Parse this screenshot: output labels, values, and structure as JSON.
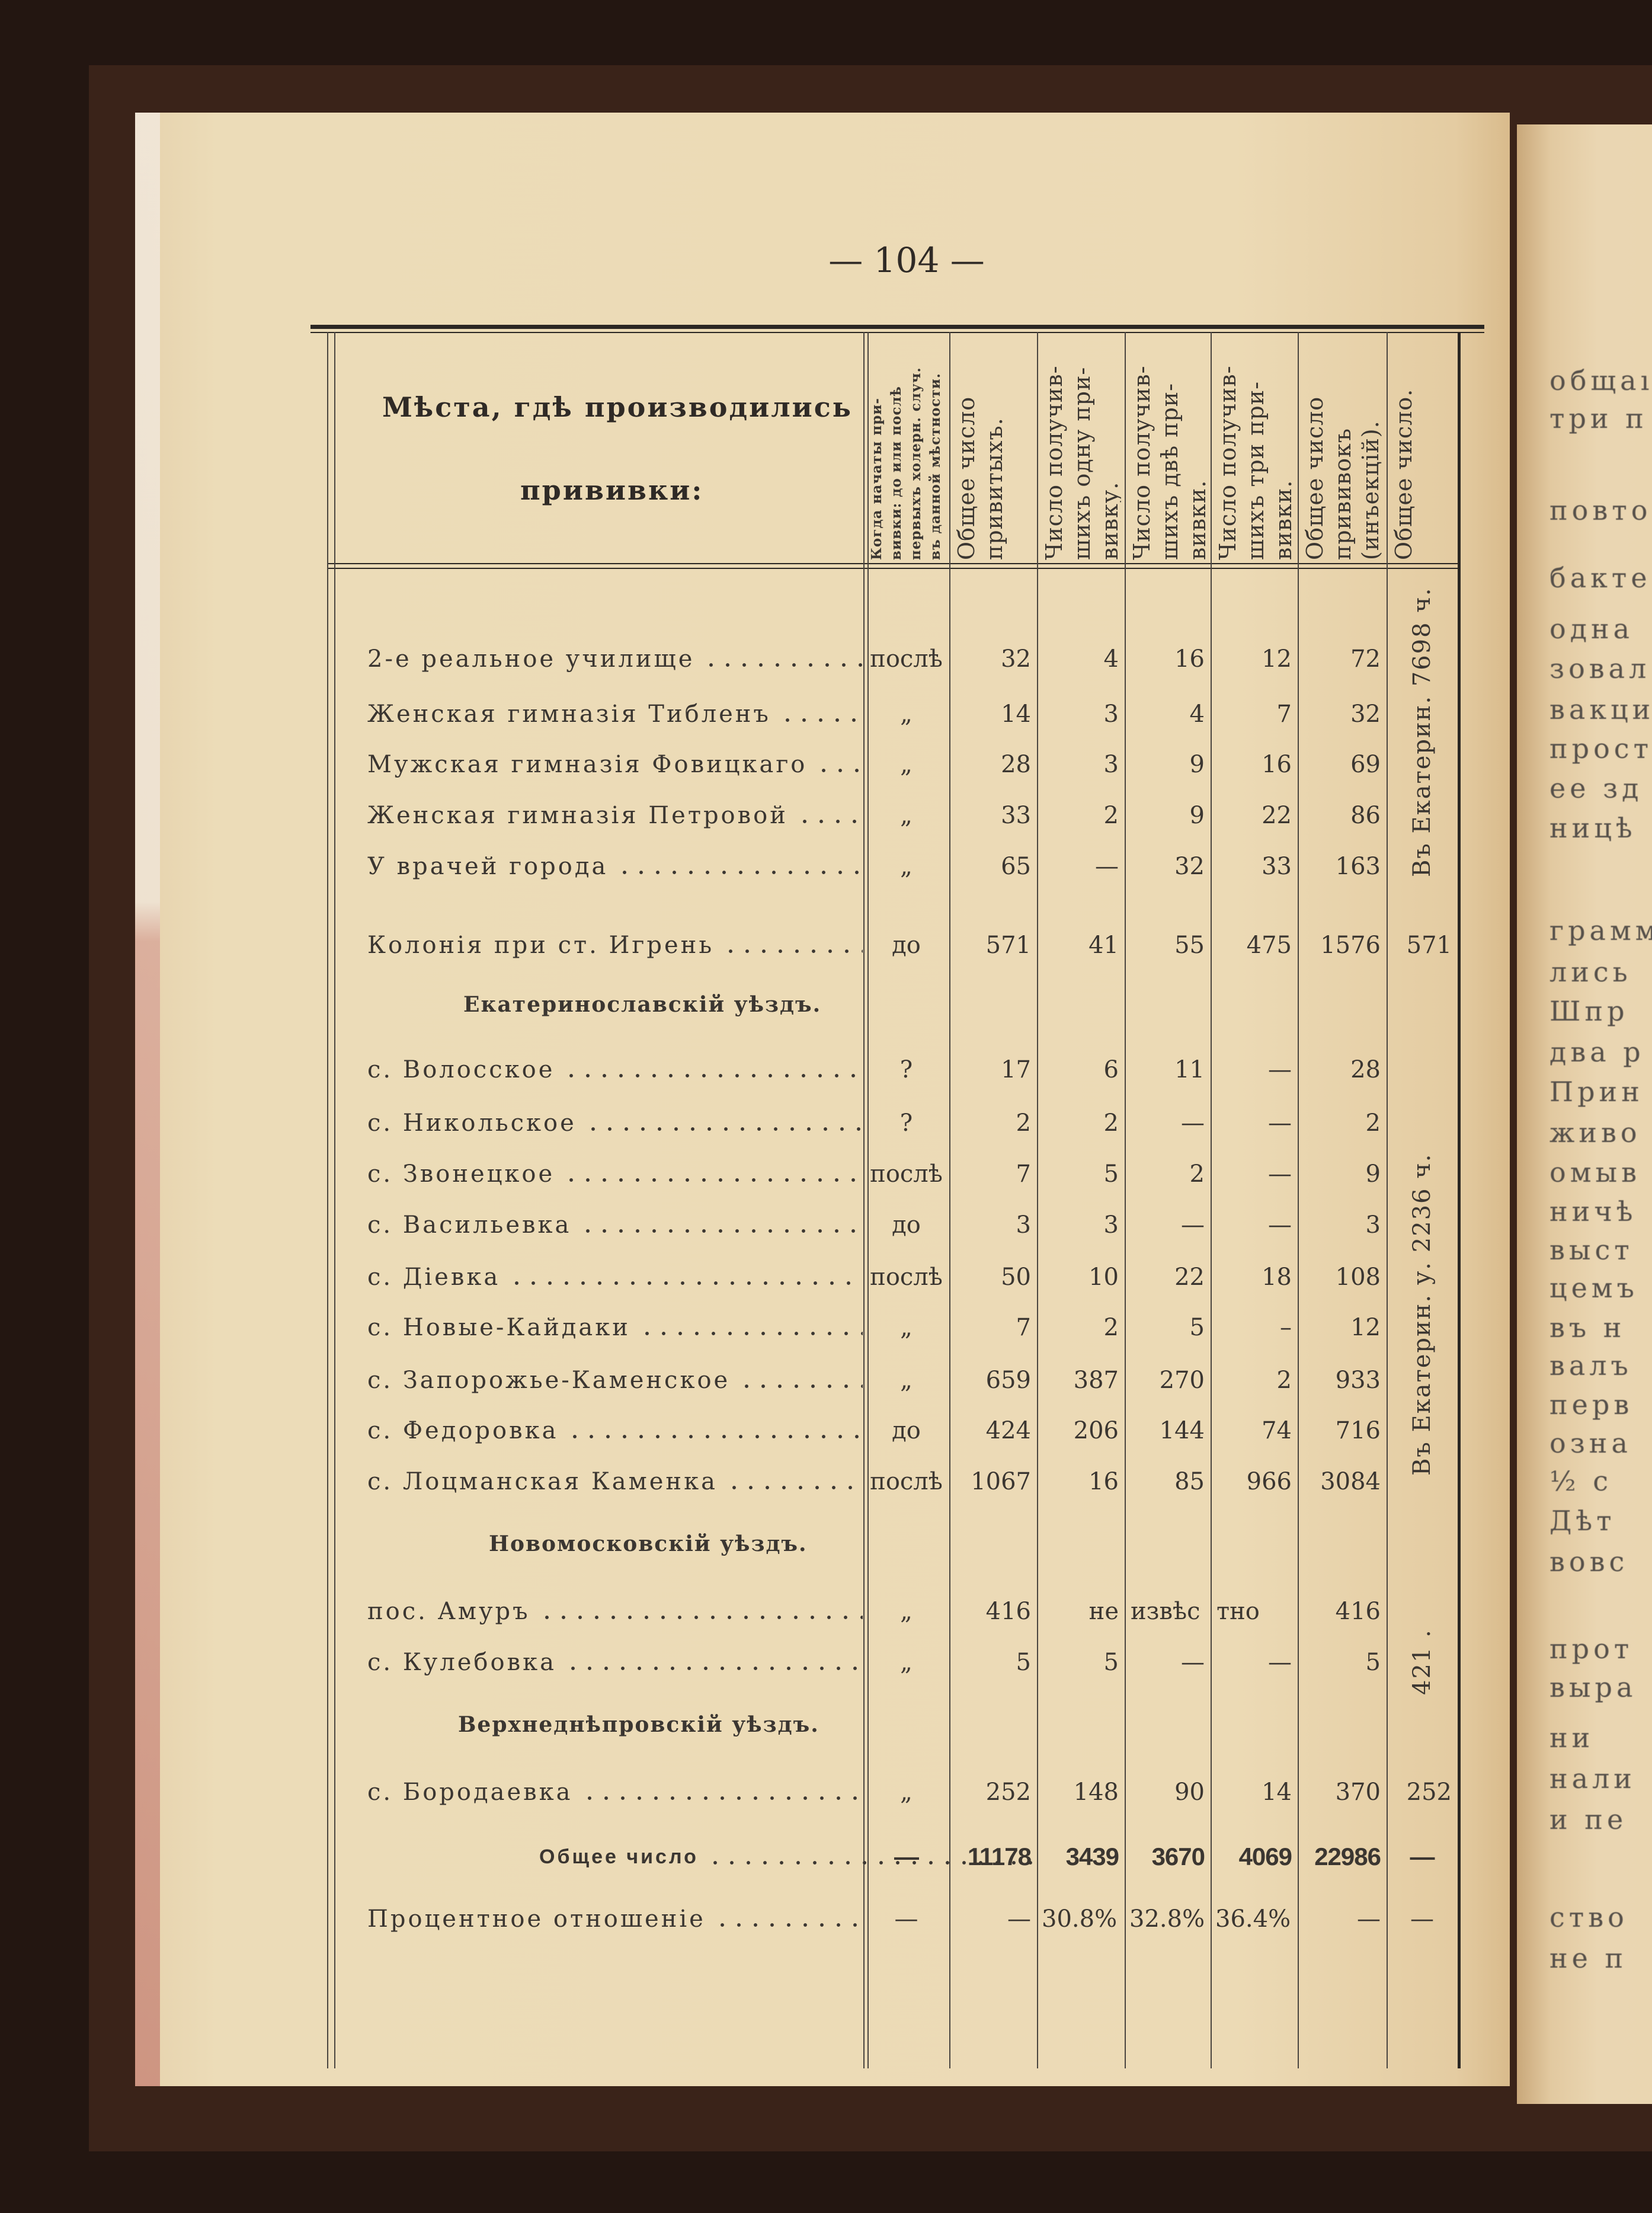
{
  "page_number": "— 104 —",
  "table": {
    "title_line1": "Мѣста, гдѣ производились",
    "title_line2": "прививки:",
    "columns": [
      [
        "Когда начаты при-",
        "вивки: до или послѣ",
        "первыхъ холерн. случ.",
        "въ данной мѣстности."
      ],
      [
        "Общее число",
        "привитыхъ."
      ],
      [
        "Число получив-",
        "шихъ одну при-",
        "вивку."
      ],
      [
        "Число получив-",
        "шихъ двѣ при-",
        "вивки."
      ],
      [
        "Число получив-",
        "шихъ три при-",
        "вивки."
      ],
      [
        "Общее число",
        "прививокъ",
        "(инъекцій)."
      ],
      [
        "Общее число."
      ]
    ],
    "rows": [
      {
        "type": "entry",
        "name": "2-е реальное училище",
        "when": "послѣ",
        "vals": [
          "32",
          "4",
          "16",
          "12",
          "72"
        ],
        "total": ""
      },
      {
        "type": "entry",
        "name": "Женская гимназія Тибленъ",
        "when": "„",
        "vals": [
          "14",
          "3",
          "4",
          "7",
          "32"
        ],
        "total": ""
      },
      {
        "type": "entry",
        "name": "Мужская гимназія Фовицкаго",
        "when": "„",
        "vals": [
          "28",
          "3",
          "9",
          "16",
          "69"
        ],
        "total": ""
      },
      {
        "type": "entry",
        "name": "Женская гимназія Петровой",
        "when": "„",
        "vals": [
          "33",
          "2",
          "9",
          "22",
          "86"
        ],
        "total": ""
      },
      {
        "type": "entry",
        "name": "У врачей города",
        "when": "„",
        "vals": [
          "65",
          "—",
          "32",
          "33",
          "163"
        ],
        "total": ""
      },
      {
        "type": "entry",
        "name": "Колонія при ст. Игрень",
        "when": "до",
        "vals": [
          "571",
          "41",
          "55",
          "475",
          "1576"
        ],
        "total": "571"
      },
      {
        "type": "section",
        "name": "Екатеринославскій уѣздъ."
      },
      {
        "type": "entry",
        "name": "с. Волосское",
        "when": "?",
        "vals": [
          "17",
          "6",
          "11",
          "—",
          "28"
        ],
        "total": ""
      },
      {
        "type": "entry",
        "name": "с. Никольское",
        "when": "?",
        "vals": [
          "2",
          "2",
          "—",
          "—",
          "2"
        ],
        "total": ""
      },
      {
        "type": "entry",
        "name": "с. Звонецкое",
        "when": "послѣ",
        "vals": [
          "7",
          "5",
          "2",
          "—",
          "9"
        ],
        "total": ""
      },
      {
        "type": "entry",
        "name": "с. Васильевка",
        "when": "до",
        "vals": [
          "3",
          "3",
          "—",
          "—",
          "3"
        ],
        "total": ""
      },
      {
        "type": "entry",
        "name": "с. Діевка",
        "when": "послѣ",
        "vals": [
          "50",
          "10",
          "22",
          "18",
          "108"
        ],
        "total": ""
      },
      {
        "type": "entry",
        "name": "с. Новые-Кайдаки",
        "when": "„",
        "vals": [
          "7",
          "2",
          "5",
          "–",
          "12"
        ],
        "total": ""
      },
      {
        "type": "entry",
        "name": "с. Запорожье-Каменское",
        "when": "„",
        "vals": [
          "659",
          "387",
          "270",
          "2",
          "933"
        ],
        "total": ""
      },
      {
        "type": "entry",
        "name": "с. Федоровка",
        "when": "до",
        "vals": [
          "424",
          "206",
          "144",
          "74",
          "716"
        ],
        "total": ""
      },
      {
        "type": "entry",
        "name": "с. Лоцманская Каменка",
        "when": "послѣ",
        "vals": [
          "1067",
          "16",
          "85",
          "966",
          "3084"
        ],
        "total": ""
      },
      {
        "type": "section",
        "name": "Новомосковскій уѣздъ."
      },
      {
        "type": "entry",
        "name": "пос. Амуръ",
        "when": "„",
        "vals": [
          "416",
          "не",
          "извѣс",
          "тно",
          "416"
        ],
        "total": ""
      },
      {
        "type": "entry",
        "name": "с. Кулебовка",
        "when": "„",
        "vals": [
          "5",
          "5",
          "—",
          "—",
          "5"
        ],
        "total": ""
      },
      {
        "type": "section",
        "name": "Верхнеднѣпровскій уѣздъ."
      },
      {
        "type": "entry",
        "name": "с. Бородаевка",
        "when": "„",
        "vals": [
          "252",
          "148",
          "90",
          "14",
          "370"
        ],
        "total": "252"
      },
      {
        "type": "total",
        "name": "Общее число",
        "when": "—",
        "vals": [
          "11178",
          "3439",
          "3670",
          "4069",
          "22986"
        ],
        "total": "—"
      },
      {
        "type": "percent",
        "name": "Процентное отношеніе",
        "when": "—",
        "vals": [
          "—",
          "30.8%",
          "32.8%",
          "36.4%",
          "—"
        ],
        "total": "—"
      }
    ],
    "group_totals": [
      "Въ Екатерин. 7698 ч.",
      "Въ Екатерин. у. 2236 ч.",
      "421 ."
    ]
  },
  "right_page_fragments": [
    "общаı",
    "три п",
    "повто",
    "бакте",
    "одна",
    "зовал",
    "вакци",
    "прост",
    "ее зд",
    "ницѣ",
    "грамм",
    "лись",
    "Шпр",
    "два р",
    "Прин",
    "живо",
    "омыв",
    "ничѣ",
    "выст",
    "цемъ",
    "въ н",
    "валъ",
    "перв",
    "озна",
    "½ с",
    "Дѣт",
    "вовс",
    "прот",
    "выра",
    "ни",
    "нали",
    "и пе",
    "ство",
    "не п"
  ],
  "colors": {
    "paper": "#ecdab5",
    "ink": "#3b3631",
    "background": "#231611"
  }
}
